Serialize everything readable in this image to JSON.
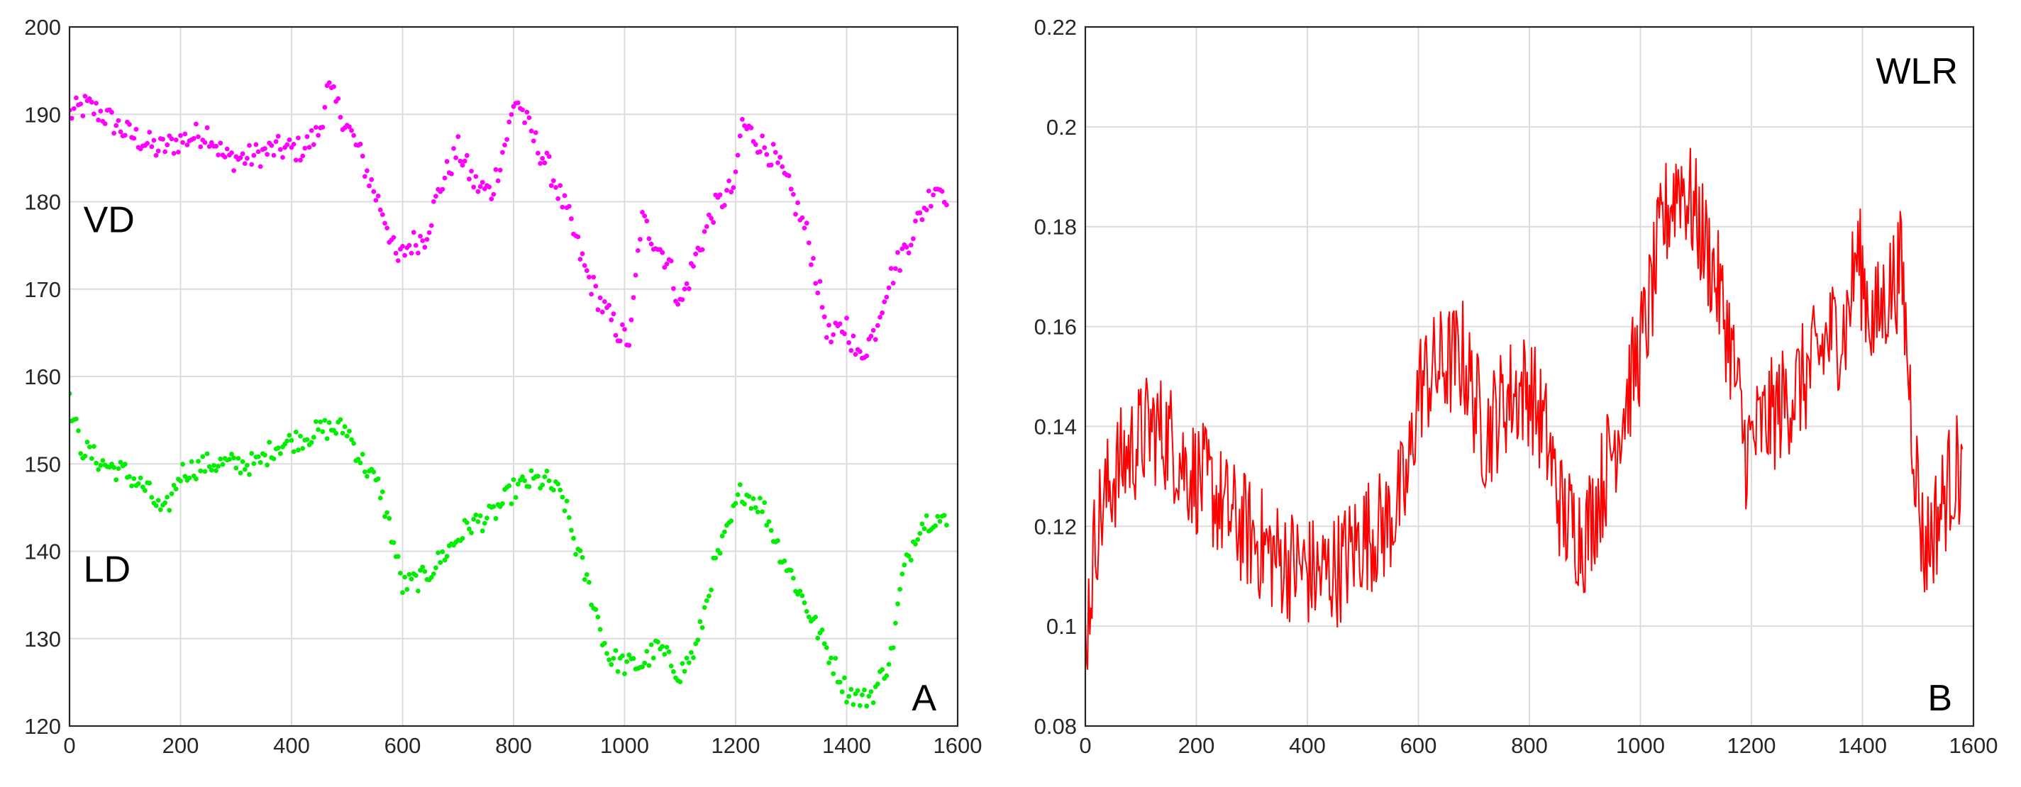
{
  "chart_data": [
    {
      "type": "scatter",
      "panel_label": "A",
      "xlim": [
        0,
        1600
      ],
      "ylim": [
        120,
        200
      ],
      "x_ticks": [
        "0",
        "200",
        "400",
        "600",
        "800",
        "1000",
        "1200",
        "1400",
        "1600"
      ],
      "y_ticks": [
        "120",
        "130",
        "140",
        "150",
        "160",
        "170",
        "180",
        "190",
        "200"
      ],
      "grid": true,
      "series": [
        {
          "name": "VD",
          "color": "#ff00ff",
          "anchors": [
            [
              0,
              190
            ],
            [
              30,
              191
            ],
            [
              60,
              190
            ],
            [
              100,
              188
            ],
            [
              130,
              187
            ],
            [
              160,
              186
            ],
            [
              200,
              187
            ],
            [
              250,
              188
            ],
            [
              280,
              185
            ],
            [
              320,
              185
            ],
            [
              370,
              186
            ],
            [
              420,
              186
            ],
            [
              450,
              188
            ],
            [
              465,
              193
            ],
            [
              490,
              190
            ],
            [
              520,
              186
            ],
            [
              550,
              181
            ],
            [
              570,
              178
            ],
            [
              590,
              173
            ],
            [
              610,
              175
            ],
            [
              640,
              176
            ],
            [
              670,
              182
            ],
            [
              700,
              186
            ],
            [
              730,
              182
            ],
            [
              760,
              181
            ],
            [
              790,
              188
            ],
            [
              805,
              192
            ],
            [
              830,
              188
            ],
            [
              870,
              183
            ],
            [
              900,
              178
            ],
            [
              930,
              172
            ],
            [
              960,
              168
            ],
            [
              990,
              165
            ],
            [
              1010,
              164
            ],
            [
              1030,
              178
            ],
            [
              1060,
              175
            ],
            [
              1080,
              173
            ],
            [
              1100,
              168
            ],
            [
              1130,
              174
            ],
            [
              1160,
              179
            ],
            [
              1200,
              182
            ],
            [
              1210,
              189
            ],
            [
              1240,
              187
            ],
            [
              1270,
              185
            ],
            [
              1300,
              181
            ],
            [
              1330,
              176
            ],
            [
              1350,
              170
            ],
            [
              1370,
              164
            ],
            [
              1400,
              166
            ],
            [
              1420,
              162
            ],
            [
              1450,
              165
            ],
            [
              1470,
              170
            ],
            [
              1500,
              174
            ],
            [
              1530,
              178
            ],
            [
              1560,
              182
            ],
            [
              1580,
              181
            ]
          ],
          "jitter": 1.5,
          "step": 4
        },
        {
          "name": "LD",
          "color": "#00ee00",
          "anchors": [
            [
              0,
              157
            ],
            [
              20,
              152
            ],
            [
              60,
              150
            ],
            [
              100,
              149
            ],
            [
              140,
              147
            ],
            [
              170,
              144
            ],
            [
              200,
              149
            ],
            [
              250,
              150
            ],
            [
              300,
              150
            ],
            [
              340,
              150
            ],
            [
              370,
              152
            ],
            [
              420,
              153
            ],
            [
              460,
              154
            ],
            [
              500,
              154
            ],
            [
              520,
              151
            ],
            [
              560,
              147
            ],
            [
              580,
              142
            ],
            [
              600,
              136
            ],
            [
              640,
              137
            ],
            [
              680,
              140
            ],
            [
              720,
              143
            ],
            [
              760,
              144
            ],
            [
              800,
              147
            ],
            [
              830,
              148
            ],
            [
              860,
              148
            ],
            [
              890,
              146
            ],
            [
              910,
              141
            ],
            [
              940,
              135
            ],
            [
              970,
              128
            ],
            [
              1000,
              127
            ],
            [
              1030,
              127
            ],
            [
              1060,
              129
            ],
            [
              1100,
              126
            ],
            [
              1130,
              129
            ],
            [
              1160,
              138
            ],
            [
              1190,
              143
            ],
            [
              1210,
              147
            ],
            [
              1250,
              145
            ],
            [
              1280,
              140
            ],
            [
              1310,
              136
            ],
            [
              1340,
              132
            ],
            [
              1370,
              128
            ],
            [
              1400,
              124
            ],
            [
              1430,
              123
            ],
            [
              1450,
              124
            ],
            [
              1480,
              128
            ],
            [
              1500,
              137
            ],
            [
              1530,
              143
            ],
            [
              1560,
              144
            ],
            [
              1580,
              143
            ]
          ],
          "jitter": 1.3,
          "step": 4
        }
      ]
    },
    {
      "type": "line",
      "panel_label": "B",
      "xlim": [
        0,
        1600
      ],
      "ylim": [
        0.08,
        0.22
      ],
      "x_ticks": [
        "0",
        "200",
        "400",
        "600",
        "800",
        "1000",
        "1200",
        "1400",
        "1600"
      ],
      "y_ticks": [
        "0.08",
        "0.1",
        "0.12",
        "0.14",
        "0.16",
        "0.18",
        "0.2",
        "0.22"
      ],
      "grid": true,
      "series": [
        {
          "name": "WLR",
          "color": "#ff0000",
          "anchors": [
            [
              0,
              0.097
            ],
            [
              20,
              0.12
            ],
            [
              50,
              0.13
            ],
            [
              80,
              0.135
            ],
            [
              120,
              0.14
            ],
            [
              150,
              0.138
            ],
            [
              180,
              0.132
            ],
            [
              220,
              0.128
            ],
            [
              260,
              0.122
            ],
            [
              300,
              0.118
            ],
            [
              340,
              0.114
            ],
            [
              380,
              0.112
            ],
            [
              420,
              0.11
            ],
            [
              460,
              0.112
            ],
            [
              500,
              0.118
            ],
            [
              540,
              0.12
            ],
            [
              580,
              0.128
            ],
            [
              600,
              0.148
            ],
            [
              640,
              0.152
            ],
            [
              680,
              0.154
            ],
            [
              720,
              0.138
            ],
            [
              760,
              0.146
            ],
            [
              800,
              0.148
            ],
            [
              830,
              0.138
            ],
            [
              860,
              0.122
            ],
            [
              900,
              0.118
            ],
            [
              930,
              0.128
            ],
            [
              960,
              0.14
            ],
            [
              990,
              0.152
            ],
            [
              1010,
              0.16
            ],
            [
              1040,
              0.18
            ],
            [
              1070,
              0.19
            ],
            [
              1100,
              0.182
            ],
            [
              1130,
              0.172
            ],
            [
              1160,
              0.158
            ],
            [
              1190,
              0.135
            ],
            [
              1220,
              0.14
            ],
            [
              1260,
              0.145
            ],
            [
              1300,
              0.15
            ],
            [
              1340,
              0.158
            ],
            [
              1370,
              0.16
            ],
            [
              1390,
              0.175
            ],
            [
              1420,
              0.16
            ],
            [
              1450,
              0.168
            ],
            [
              1470,
              0.172
            ],
            [
              1490,
              0.14
            ],
            [
              1510,
              0.115
            ],
            [
              1530,
              0.12
            ],
            [
              1560,
              0.13
            ],
            [
              1580,
              0.132
            ]
          ],
          "jitter": 0.012,
          "step": 2
        }
      ]
    }
  ]
}
